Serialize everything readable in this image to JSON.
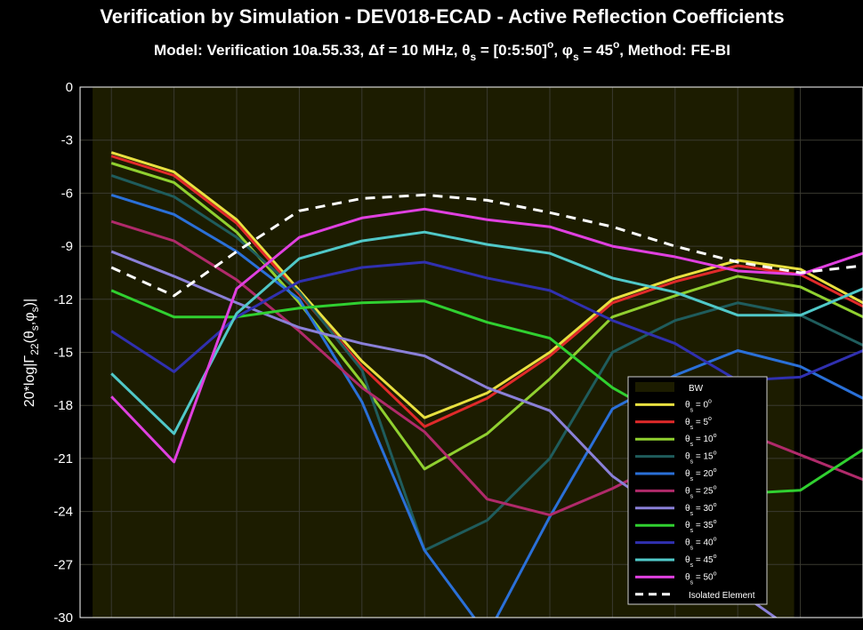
{
  "chart_data": {
    "type": "line",
    "title": "Verification by Simulation - DEV018-ECAD - Active Reflection Coefficients",
    "subtitle": {
      "prefix": "Model: Verification 10a.55.33, Δf = 10 MHz, ",
      "theta_sym": "θ",
      "sub_s": "s",
      "theta_val": " = [0:5:50]",
      "deg": "o",
      "sep": ", ",
      "phi_sym": "φ",
      "phi_val": " = 45",
      "suffix": ", Method: FE-BI"
    },
    "ylabel": {
      "base": "20*log|Γ",
      "sub1": "22",
      "mid1": "(θ",
      "sub2": "s",
      "mid2": ",φ",
      "sub3": "s",
      "end": ")|"
    },
    "ylim": [
      -30,
      0
    ],
    "yticks": [
      0,
      -3,
      -6,
      -9,
      -12,
      -15,
      -18,
      -21,
      -24,
      -27,
      -30
    ],
    "xlim": [
      0,
      25
    ],
    "x": [
      1,
      3,
      5,
      7,
      9,
      11,
      13,
      15,
      17,
      19,
      21,
      23,
      25
    ],
    "bw": [
      0.4,
      22.8
    ],
    "background": "#000000",
    "bw_color": "#1c1c00",
    "legend_position": "bottom-right",
    "legend": {
      "bw": "BW",
      "theta": "θ",
      "sub": "s",
      "deg": "o",
      "isolated": "Isolated Element"
    },
    "series": [
      {
        "name": "0",
        "color": "#e8e040",
        "values": [
          -3.7,
          -4.8,
          -7.5,
          -11.5,
          -15.5,
          -18.7,
          -17.3,
          -15,
          -12,
          -10.8,
          -9.8,
          -10.3,
          -12.2
        ]
      },
      {
        "name": "5",
        "color": "#e02a2a",
        "values": [
          -3.9,
          -5.0,
          -7.7,
          -11.7,
          -15.8,
          -19.2,
          -17.6,
          -15.2,
          -12.2,
          -11.0,
          -10.1,
          -10.6,
          -12.4
        ]
      },
      {
        "name": "10",
        "color": "#90d030",
        "values": [
          -4.3,
          -5.4,
          -8.2,
          -12.2,
          -16.7,
          -21.6,
          -19.6,
          -16.5,
          -13.0,
          -11.8,
          -10.7,
          -11.3,
          -13.0
        ]
      },
      {
        "name": "15",
        "color": "#1f5c5c",
        "values": [
          -5.0,
          -6.2,
          -8.5,
          -11.6,
          -16.0,
          -26.2,
          -24.5,
          -21.0,
          -15.0,
          -13.2,
          -12.2,
          -12.9,
          -14.6
        ]
      },
      {
        "name": "20",
        "color": "#2a70d8",
        "values": [
          -6.1,
          -7.2,
          -9.3,
          -12.0,
          -17.8,
          -26.2,
          -31.0,
          -24.3,
          -18.2,
          -16.3,
          -14.9,
          -15.8,
          -17.6
        ]
      },
      {
        "name": "25",
        "color": "#b02a6a",
        "values": [
          -7.6,
          -8.7,
          -10.9,
          -13.8,
          -17.0,
          -19.5,
          -23.3,
          -24.2,
          -22.7,
          -20.9,
          -19.4,
          -20.8,
          -22.2
        ]
      },
      {
        "name": "30",
        "color": "#8a80d8",
        "values": [
          -9.3,
          -10.7,
          -12.2,
          -13.6,
          -14.5,
          -15.2,
          -17.0,
          -18.3,
          -22.0,
          -24.5,
          -28.5,
          -31.0,
          -31.0
        ]
      },
      {
        "name": "35",
        "color": "#30d030",
        "values": [
          -11.5,
          -13.0,
          -13.0,
          -12.5,
          -12.2,
          -12.1,
          -13.3,
          -14.2,
          -17.0,
          -19.0,
          -23.0,
          -22.8,
          -20.5
        ]
      },
      {
        "name": "40",
        "color": "#3030b0",
        "values": [
          -13.8,
          -16.1,
          -13.0,
          -11.0,
          -10.2,
          -9.9,
          -10.8,
          -11.5,
          -13.2,
          -14.5,
          -16.6,
          -16.4,
          -14.9
        ]
      },
      {
        "name": "45",
        "color": "#50c8c8",
        "values": [
          -16.2,
          -19.6,
          -12.8,
          -9.7,
          -8.7,
          -8.2,
          -8.9,
          -9.4,
          -10.8,
          -11.6,
          -12.9,
          -12.9,
          -11.4
        ]
      },
      {
        "name": "50",
        "color": "#e040e0",
        "values": [
          -17.5,
          -21.2,
          -11.4,
          -8.5,
          -7.4,
          -6.9,
          -7.5,
          -7.9,
          -9.0,
          -9.6,
          -10.4,
          -10.6,
          -9.4
        ]
      }
    ],
    "isolated": {
      "name": "Isolated Element",
      "color": "#ffffff",
      "values": [
        -10.2,
        -11.8,
        -9.3,
        -7.0,
        -6.3,
        -6.1,
        -6.4,
        -7.1,
        -7.9,
        -9.0,
        -9.9,
        -10.5,
        -10.1
      ]
    }
  }
}
